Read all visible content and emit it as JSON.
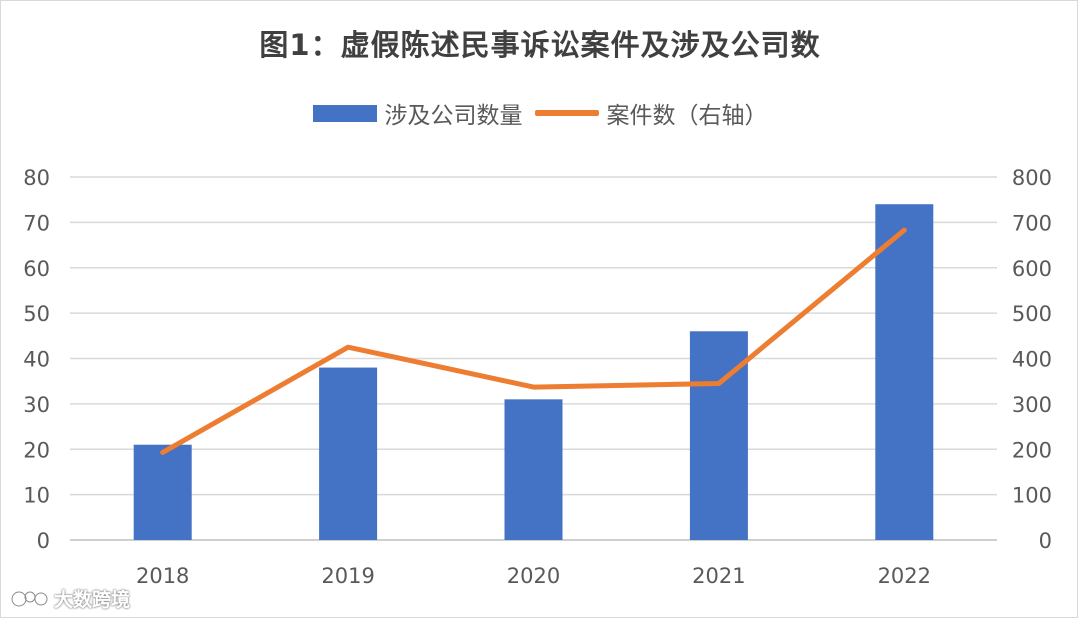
{
  "chart_data": {
    "type": "bar",
    "title": "图1：虚假陈述民事诉讼案件及涉及公司数",
    "categories": [
      "2018",
      "2019",
      "2020",
      "2021",
      "2022"
    ],
    "series": [
      {
        "name": "涉及公司数量",
        "type": "bar",
        "axis": "left",
        "color": "#4472c4",
        "values": [
          21,
          38,
          31,
          46,
          74
        ]
      },
      {
        "name": "案件数（右轴）",
        "type": "line",
        "axis": "right",
        "color": "#ed7d31",
        "values": [
          193,
          425,
          337,
          345,
          683
        ]
      }
    ],
    "ylim_left": [
      0,
      80
    ],
    "yticks_left": [
      0,
      10,
      20,
      30,
      40,
      50,
      60,
      70,
      80
    ],
    "ylim_right": [
      0,
      800
    ],
    "yticks_right": [
      0,
      100,
      200,
      300,
      400,
      500,
      600,
      700,
      800
    ],
    "grid": true,
    "legend_position": "top-center"
  },
  "watermark": {
    "text": "大数跨境"
  }
}
